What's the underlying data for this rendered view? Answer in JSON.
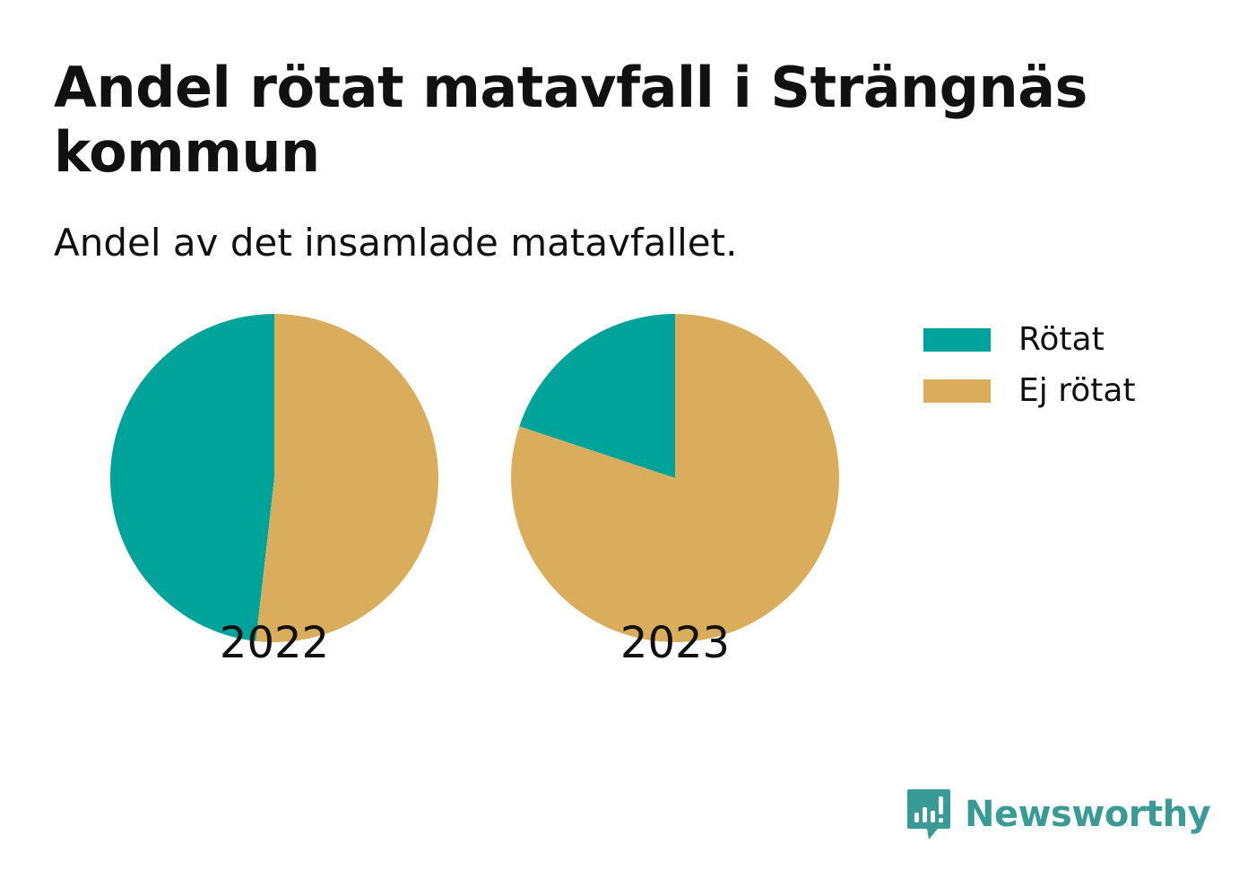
{
  "chart_data": {
    "type": "pie",
    "title": "Andel rötat matavfall i Strängnäs kommun",
    "subtitle": "Andel av det insamlade matavfallet.",
    "legend_position": "top-right",
    "legend": [
      {
        "name": "Rötat",
        "color": "#00a39a"
      },
      {
        "name": "Ej rötat",
        "color": "#d9ad5b"
      }
    ],
    "pies": [
      {
        "label": "2022",
        "slices": [
          {
            "name": "Rötat",
            "value": 48.2
          },
          {
            "name": "Ej rötat",
            "value": 51.8
          }
        ]
      },
      {
        "label": "2023",
        "slices": [
          {
            "name": "Rötat",
            "value": 19.9
          },
          {
            "name": "Ej rötat",
            "value": 80.1
          }
        ]
      }
    ]
  },
  "brand": {
    "name": "Newsworthy",
    "color": "#3a9b96"
  }
}
